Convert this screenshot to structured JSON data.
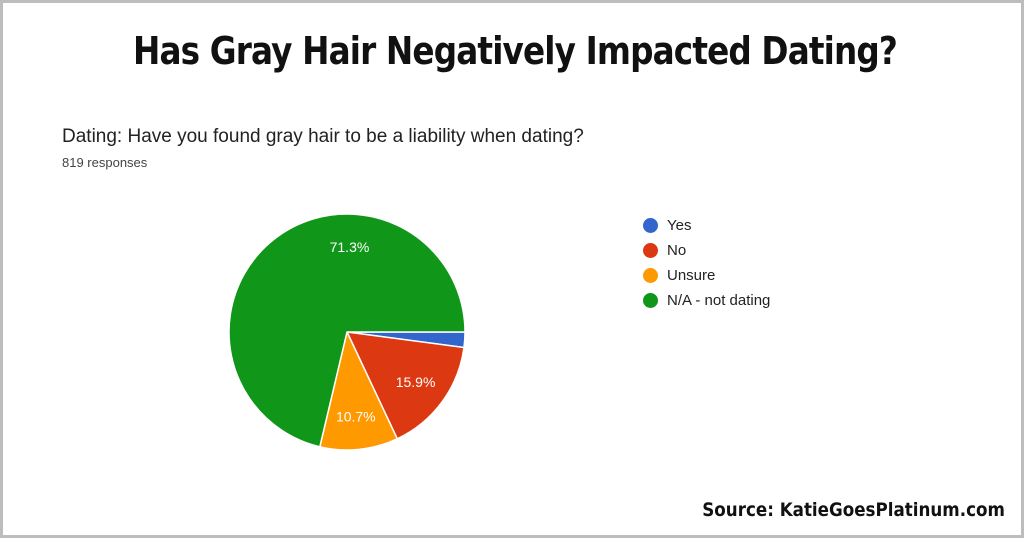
{
  "headline": "Has Gray Hair Negatively Impacted Dating?",
  "source": "Source: KatieGoesPlatinum.com",
  "chart_data": {
    "type": "pie",
    "title": "Dating: Have you found gray hair to be a liability when dating?",
    "subtitle": "819 responses",
    "categories": [
      "Yes",
      "No",
      "Unsure",
      "N/A - not dating"
    ],
    "values": [
      2.1,
      15.9,
      10.7,
      71.3
    ],
    "data_labels": [
      "",
      "15.9%",
      "10.7%",
      "71.3%"
    ],
    "colors": [
      "#3366cc",
      "#dc3912",
      "#ff9900",
      "#109618"
    ],
    "legend_position": "right",
    "start_angle_deg": 90,
    "direction": "clockwise"
  }
}
